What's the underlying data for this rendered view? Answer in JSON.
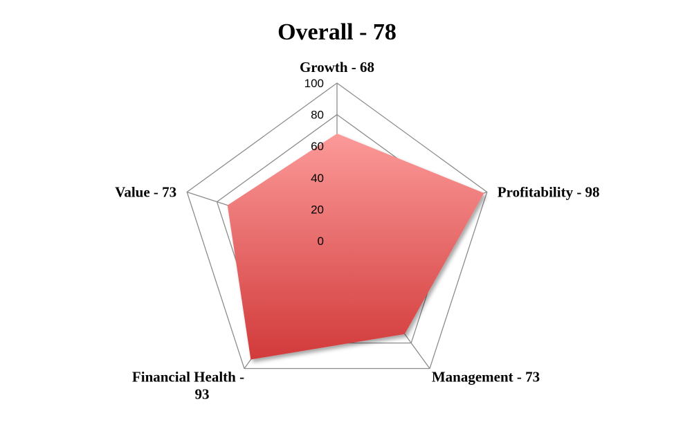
{
  "chart_data": {
    "type": "radar",
    "title": "Overall - 78",
    "categories": [
      "Growth",
      "Profitability",
      "Management",
      "Financial Health",
      "Value"
    ],
    "category_labels": [
      [
        "Growth - 68"
      ],
      [
        "Profitability - 98"
      ],
      [
        "Management - 73"
      ],
      [
        "Financial Health -",
        "93"
      ],
      [
        "Value - 73"
      ]
    ],
    "series": [
      {
        "values": [
          68,
          98,
          73,
          93,
          73
        ]
      }
    ],
    "rlim": [
      0,
      100
    ],
    "ticks": [
      "0",
      "20",
      "40",
      "60",
      "80",
      "100"
    ],
    "tick_values": [
      0,
      20,
      40,
      60,
      80,
      100
    ],
    "grid": true,
    "legend": "none",
    "colors": {
      "fill_top": "#fb9a99",
      "fill_bottom": "#d23a3a",
      "grid": "#8c8c8c"
    }
  }
}
